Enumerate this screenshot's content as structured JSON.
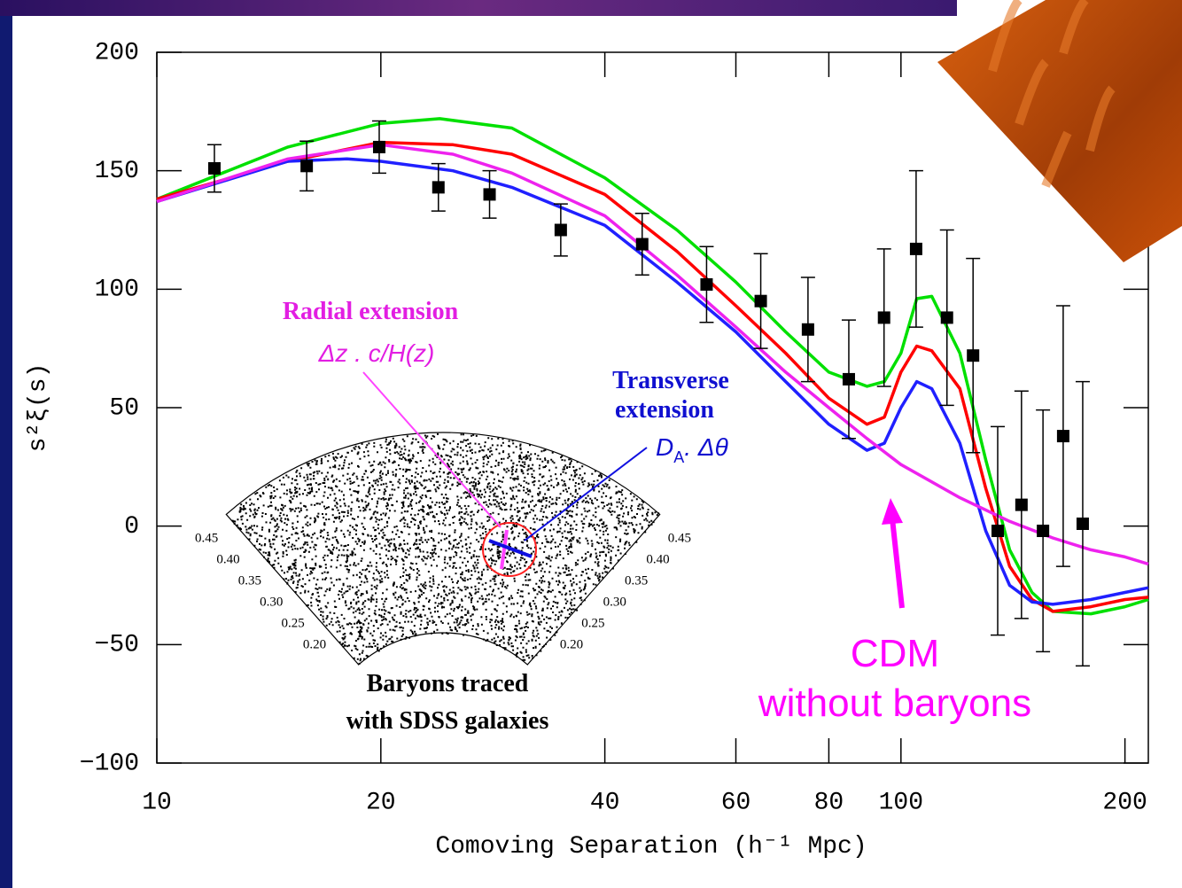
{
  "chart_data": {
    "type": "line",
    "xlabel": "Comoving Separation (h⁻¹ Mpc)",
    "ylabel": "s²ξ(s)",
    "xscale": "log",
    "xlim": [
      10,
      215
    ],
    "ylim": [
      -100,
      200
    ],
    "xticks": [
      10,
      20,
      40,
      60,
      80,
      100,
      200
    ],
    "yticks": [
      {
        "value": -100,
        "label": "−100"
      },
      {
        "value": -50,
        "label": "−50"
      },
      0,
      50,
      100,
      150,
      200
    ],
    "series": [
      {
        "color": "#00e000",
        "x": [
          10,
          15,
          20,
          24,
          30,
          40,
          50,
          60,
          70,
          80,
          90,
          95,
          100,
          105,
          110,
          120,
          130,
          140,
          150,
          160,
          180,
          200,
          215
        ],
        "values": [
          138,
          160,
          170,
          172,
          168,
          147,
          125,
          103,
          82,
          65,
          59,
          61,
          73,
          96,
          97,
          73,
          28,
          -10,
          -28,
          -36,
          -37,
          -34,
          -31
        ]
      },
      {
        "color": "#ff0000",
        "x": [
          10,
          15,
          20,
          25,
          30,
          40,
          50,
          60,
          70,
          80,
          90,
          95,
          100,
          105,
          110,
          120,
          130,
          140,
          150,
          160,
          180,
          200,
          215
        ],
        "values": [
          138,
          154,
          162,
          161,
          157,
          140,
          116,
          93,
          73,
          54,
          43,
          46,
          65,
          76,
          74,
          58,
          16,
          -17,
          -31,
          -36,
          -34,
          -31,
          -30
        ]
      },
      {
        "color": "#2020ff",
        "x": [
          10,
          15,
          18,
          20,
          25,
          30,
          40,
          50,
          60,
          70,
          80,
          90,
          95,
          100,
          105,
          110,
          120,
          130,
          140,
          150,
          160,
          180,
          200,
          215
        ],
        "values": [
          137,
          154,
          155,
          154,
          150,
          143,
          127,
          103,
          82,
          61,
          43,
          32,
          35,
          50,
          61,
          58,
          35,
          -2,
          -25,
          -32,
          -33,
          -31,
          -28,
          -26
        ]
      },
      {
        "color": "#ee22ee",
        "x": [
          10,
          15,
          20,
          25,
          30,
          40,
          50,
          60,
          70,
          80,
          90,
          100,
          120,
          140,
          160,
          180,
          200,
          215
        ],
        "values": [
          137,
          155,
          161,
          157,
          149,
          131,
          106,
          84,
          65,
          50,
          37,
          26,
          12,
          2,
          -5,
          -10,
          -13,
          -16
        ]
      },
      {
        "type": "scatter",
        "color": "#000000",
        "x": [
          11.95,
          15.9,
          19.9,
          23.9,
          28.0,
          34.9,
          44.9,
          54.8,
          64.8,
          75.0,
          85.1,
          94.9,
          104.8,
          115.3,
          125,
          134.9,
          145.2,
          155.2,
          165.2,
          175.5
        ],
        "values": [
          151,
          152,
          160,
          143,
          140,
          125,
          119,
          102,
          95,
          83,
          62,
          88,
          117,
          88,
          72,
          -2,
          9,
          -2,
          38,
          1
        ],
        "errors": [
          10,
          10.5,
          11,
          10,
          10,
          11,
          13,
          16,
          20,
          22,
          25,
          29,
          33,
          37,
          41,
          44,
          48,
          51,
          55,
          60
        ]
      }
    ],
    "radial_label": "Radial extension",
    "radial_formula": "Δz . c/H(z)",
    "transverse_label": [
      "Transverse",
      "extension"
    ],
    "transverse_formula": {
      "text": "D",
      "sub": "A",
      "rest": ". Δθ"
    },
    "cdm_label": [
      "CDM",
      "without baryons"
    ],
    "inset": {
      "caption": [
        "Baryons traced",
        "with SDSS galaxies"
      ],
      "zlim": [
        0.14,
        0.47
      ],
      "ticks": [
        {
          "value": 0.45,
          "label": "0.45"
        },
        {
          "value": 0.4,
          "label": "0.40"
        },
        {
          "value": 0.35,
          "label": "0.35"
        },
        {
          "value": 0.3,
          "label": "0.30"
        },
        {
          "value": 0.25,
          "label": "0.25"
        },
        {
          "value": 0.2,
          "label": "0.20"
        }
      ]
    }
  }
}
